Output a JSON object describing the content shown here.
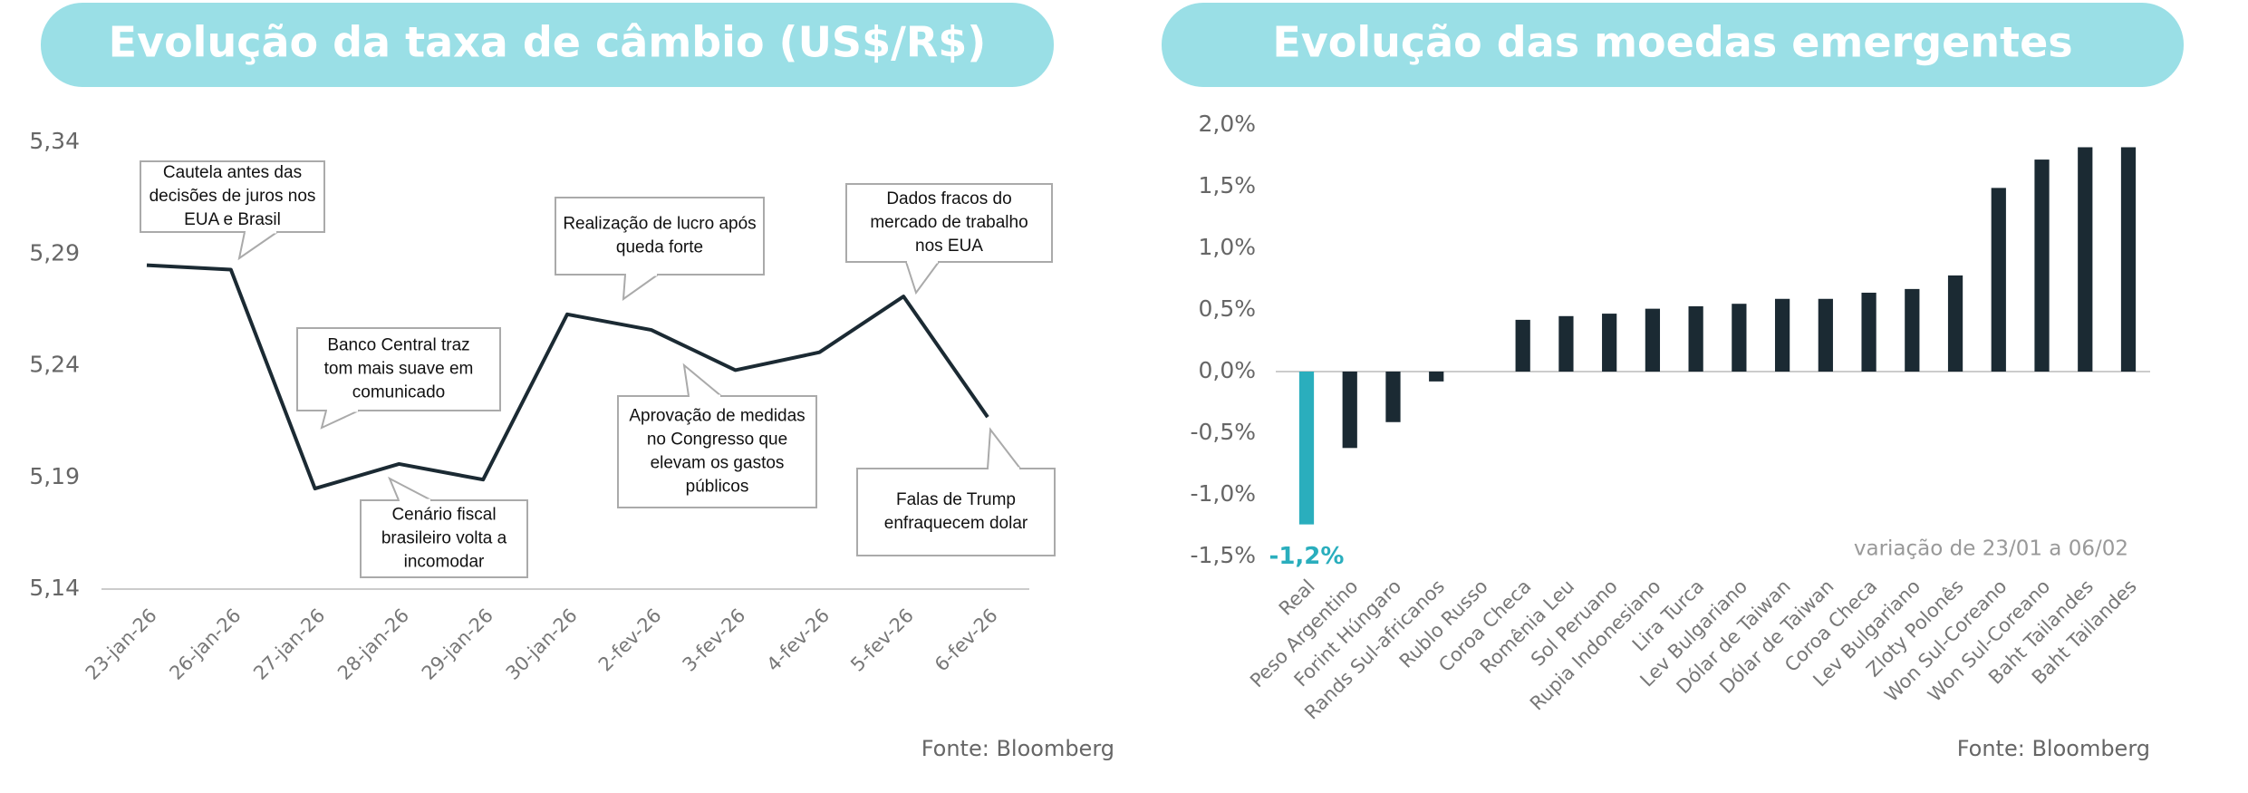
{
  "chart_data": [
    {
      "type": "line",
      "title": "Evolução da taxa de câmbio (US$/R$)",
      "categories": [
        "23-jan-26",
        "26-jan-26",
        "27-jan-26",
        "28-jan-26",
        "29-jan-26",
        "30-jan-26",
        "2-fev-26",
        "3-fev-26",
        "4-fev-26",
        "5-fev-26",
        "6-fev-26"
      ],
      "values": [
        5.285,
        5.283,
        5.185,
        5.196,
        5.189,
        5.263,
        5.256,
        5.238,
        5.246,
        5.271,
        5.217
      ],
      "color": "#1b2a33",
      "ylim": [
        5.14,
        5.34
      ],
      "yticks": [
        {
          "value": 5.14,
          "label": "5,14"
        },
        {
          "value": 5.19,
          "label": "5,19"
        },
        {
          "value": 5.24,
          "label": "5,24"
        },
        {
          "value": 5.29,
          "label": "5,29"
        },
        {
          "value": 5.34,
          "label": "5,34"
        }
      ],
      "annotations": [
        {
          "lines": [
            "Cautela antes das",
            "decisões de juros nos",
            "EUA e Brasil"
          ]
        },
        {
          "lines": [
            "Banco Central traz",
            "tom mais suave em",
            "comunicado"
          ]
        },
        {
          "lines": [
            "Cenário fiscal",
            "brasileiro volta a",
            "incomodar"
          ]
        },
        {
          "lines": [
            "Realização de lucro após",
            "queda forte"
          ]
        },
        {
          "lines": [
            "Aprovação de medidas",
            "no Congresso que",
            "elevam os gastos",
            "públicos"
          ]
        },
        {
          "lines": [
            "Dados fracos do",
            "mercado de trabalho",
            "nos EUA"
          ]
        },
        {
          "lines": [
            "Falas de Trump",
            "enfraquecem dolar"
          ]
        }
      ],
      "source": "Fonte: Bloomberg"
    },
    {
      "type": "bar",
      "title": "Evolução das moedas emergentes",
      "categories": [
        "Real",
        "Peso Argentino",
        "Forint Húngaro",
        "Rands Sul-africanos",
        "Rublo Russo",
        "Coroa Checa",
        "Romênia Leu",
        "Sol Peruano",
        "Rupia Indonesiano",
        "Lira Turca",
        "Lev Bulgariano",
        "Dólar de Taiwan",
        "Dólar de Taiwan",
        "Coroa Checa",
        "Lev Bulgariano",
        "Zloty Polonês",
        "Won Sul-Coreano",
        "Won Sul-Coreano",
        "Baht Tailandes",
        "Baht Tailandes"
      ],
      "values": [
        -1.24,
        -0.62,
        -0.41,
        -0.08,
        0,
        0.42,
        0.45,
        0.47,
        0.51,
        0.53,
        0.55,
        0.59,
        0.59,
        0.64,
        0.67,
        0.78,
        1.49,
        1.72,
        1.82,
        1.82
      ],
      "value_labels": [
        "-1,2%",
        null,
        null,
        null,
        null,
        null,
        null,
        null,
        null,
        null,
        null,
        null,
        null,
        null,
        null,
        null,
        null,
        null,
        null,
        null
      ],
      "colors": [
        "#2aaebd",
        "#1b2a33",
        "#1b2a33",
        "#1b2a33",
        "#1b2a33",
        "#1b2a33",
        "#1b2a33",
        "#1b2a33",
        "#1b2a33",
        "#1b2a33",
        "#1b2a33",
        "#1b2a33",
        "#1b2a33",
        "#1b2a33",
        "#1b2a33",
        "#1b2a33",
        "#1b2a33",
        "#1b2a33",
        "#1b2a33",
        "#1b2a33"
      ],
      "ylim": [
        -1.5,
        2.0
      ],
      "yticks": [
        {
          "value": -1.5,
          "label": "-1,5%"
        },
        {
          "value": -1.0,
          "label": "-1,0%"
        },
        {
          "value": -0.5,
          "label": "-0,5%"
        },
        {
          "value": 0,
          "label": "0,0%"
        },
        {
          "value": 0.5,
          "label": "0,5%"
        },
        {
          "value": 1.0,
          "label": "1,0%"
        },
        {
          "value": 1.5,
          "label": "1,5%"
        },
        {
          "value": 2.0,
          "label": "2,0%"
        }
      ],
      "note": "variação de 23/01 a 06/02",
      "source": "Fonte: Bloomberg"
    }
  ]
}
